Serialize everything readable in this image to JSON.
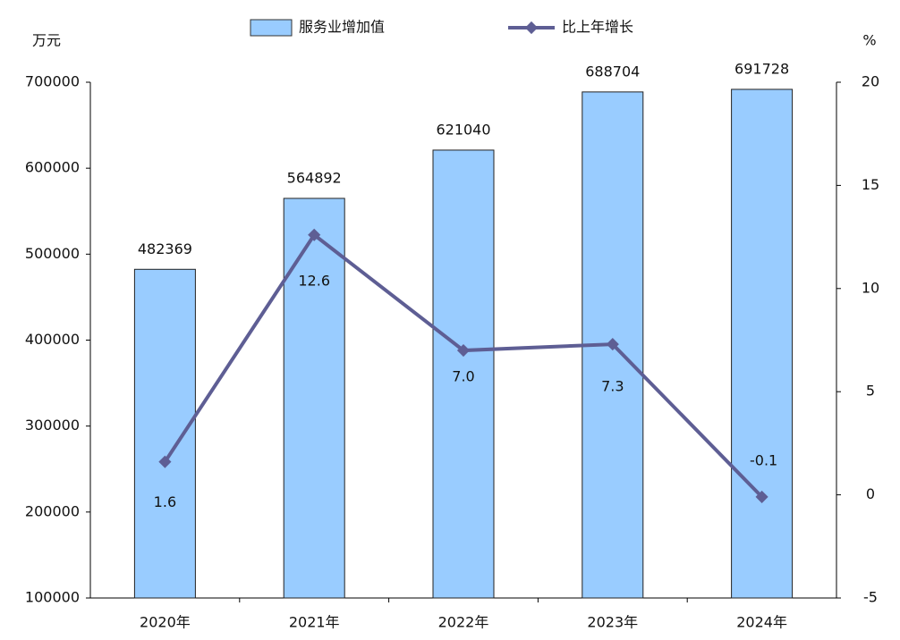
{
  "chart_data": {
    "type": "bar-line",
    "categories": [
      "2020年",
      "2021年",
      "2022年",
      "2023年",
      "2024年"
    ],
    "y_unit": "万元",
    "y2_unit": "%",
    "series": [
      {
        "name": "服务业增加值",
        "type": "bar",
        "color": "#99ccff",
        "values": [
          482369,
          564892,
          621040,
          688704,
          691728
        ]
      },
      {
        "name": "比上年增长",
        "type": "line",
        "axis": "y2",
        "color": "#5e5e94",
        "values": [
          1.6,
          12.6,
          7.0,
          7.3,
          -0.1
        ],
        "value_labels": [
          "1.6",
          "12.6",
          "7.0",
          "7.3",
          "-0.1"
        ]
      }
    ],
    "ylim": [
      100000,
      700000
    ],
    "yticks": [
      100000,
      200000,
      300000,
      400000,
      500000,
      600000,
      700000
    ],
    "y2lim": [
      -5,
      20
    ],
    "y2ticks": [
      -5,
      0,
      5,
      10,
      15,
      20
    ]
  }
}
